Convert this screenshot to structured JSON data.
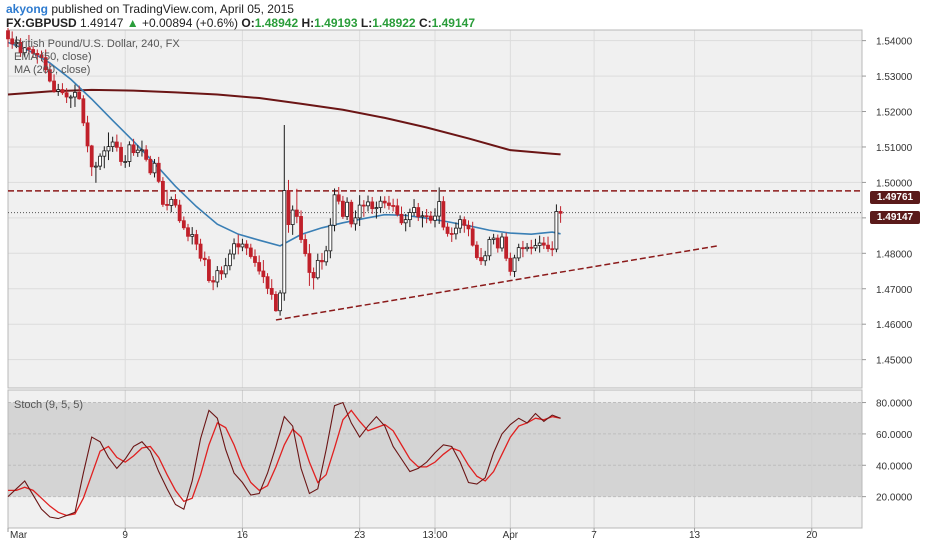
{
  "header": {
    "author": "akyong",
    "published_text": "published on TradingView.com, April 05, 2015",
    "symbol": "FX:GBPUSD",
    "last": "1.49147",
    "change": "+0.00894 (+0.6%)",
    "o_label": "O:",
    "o": "1.48942",
    "h_label": "H:",
    "h": "1.49193",
    "l_label": "L:",
    "l": "1.48922",
    "c_label": "C:",
    "c": "1.49147"
  },
  "legend": {
    "title": "British Pound/U.S. Dollar, 240, FX",
    "ema": "EMA (50, close)",
    "ma": "MA (200, close)",
    "stoch": "Stoch (9, 5, 5)"
  },
  "price_tags": {
    "resistance": "1.49761",
    "current": "1.49147"
  },
  "colors": {
    "bull": "#1a1a1a",
    "bear": "#c0202a",
    "ema": "#3a7fb5",
    "ma": "#6b1515",
    "resistance": "#8b1a1a",
    "stoch_k": "#6b1515",
    "stoch_d": "#e02020",
    "stoch_band": "#d4d4d4",
    "background": "#f0f0f0"
  },
  "chart_data": {
    "type": "candlestick",
    "y_axis": {
      "ylim": [
        1.442,
        1.543
      ],
      "ticks": [
        "1.54000",
        "1.53000",
        "1.52000",
        "1.51000",
        "1.50000",
        "1.49000",
        "1.48000",
        "1.47000",
        "1.46000",
        "1.45000"
      ],
      "tick_values": [
        1.54,
        1.53,
        1.52,
        1.51,
        1.5,
        1.49,
        1.48,
        1.47,
        1.46,
        1.45
      ]
    },
    "x_axis": {
      "labels": [
        "Mar",
        "9",
        "16",
        "23",
        "13:00",
        "Apr",
        "7",
        "13",
        "20"
      ],
      "label_days": [
        2,
        9,
        16,
        23,
        27.5,
        32,
        37,
        43,
        50
      ],
      "xlim": [
        2,
        53
      ]
    },
    "resistance_level": 1.49761,
    "current_price": 1.49147,
    "trendline": {
      "x": [
        18.0,
        44.5
      ],
      "y": [
        1.4612,
        1.4822
      ]
    },
    "candles": [
      [
        2.0,
        1.5428,
        1.5436,
        1.5382,
        1.5405
      ],
      [
        2.25,
        1.5405,
        1.5426,
        1.5377,
        1.5391
      ],
      [
        2.5,
        1.5391,
        1.5412,
        1.5379,
        1.5395
      ],
      [
        2.75,
        1.5395,
        1.5407,
        1.5354,
        1.5366
      ],
      [
        3.0,
        1.5366,
        1.5382,
        1.5354,
        1.538
      ],
      [
        3.25,
        1.538,
        1.5416,
        1.5363,
        1.5375
      ],
      [
        3.5,
        1.5375,
        1.5384,
        1.5353,
        1.5364
      ],
      [
        3.75,
        1.5364,
        1.5375,
        1.5335,
        1.536
      ],
      [
        4.0,
        1.536,
        1.5372,
        1.5342,
        1.5352
      ],
      [
        4.25,
        1.5352,
        1.5375,
        1.5307,
        1.5318
      ],
      [
        4.5,
        1.5318,
        1.5335,
        1.5282,
        1.5286
      ],
      [
        4.75,
        1.5286,
        1.5305,
        1.5253,
        1.5257
      ],
      [
        5.0,
        1.5257,
        1.5278,
        1.5244,
        1.5262
      ],
      [
        5.25,
        1.5262,
        1.528,
        1.5247,
        1.5253
      ],
      [
        5.5,
        1.5253,
        1.5266,
        1.5224,
        1.5241
      ],
      [
        5.75,
        1.5241,
        1.5247,
        1.521,
        1.5241
      ],
      [
        6.0,
        1.5241,
        1.5276,
        1.5213,
        1.5254
      ],
      [
        6.25,
        1.5254,
        1.5273,
        1.5233,
        1.5236
      ],
      [
        6.5,
        1.5236,
        1.5246,
        1.5159,
        1.5168
      ],
      [
        6.75,
        1.5168,
        1.5188,
        1.5085,
        1.5103
      ],
      [
        7.0,
        1.5103,
        1.5106,
        1.5018,
        1.5044
      ],
      [
        7.25,
        1.5044,
        1.5058,
        1.4999,
        1.5046
      ],
      [
        7.5,
        1.5046,
        1.5082,
        1.5035,
        1.5074
      ],
      [
        7.75,
        1.5074,
        1.5102,
        1.504,
        1.5089
      ],
      [
        8.0,
        1.5089,
        1.5141,
        1.5063,
        1.5101
      ],
      [
        8.25,
        1.5101,
        1.5129,
        1.5086,
        1.5114
      ],
      [
        8.5,
        1.5114,
        1.5135,
        1.5087,
        1.5099
      ],
      [
        8.75,
        1.5099,
        1.5113,
        1.5047,
        1.5059
      ],
      [
        9.0,
        1.5059,
        1.5077,
        1.5041,
        1.5059
      ],
      [
        9.25,
        1.5059,
        1.5116,
        1.5044,
        1.5106
      ],
      [
        9.5,
        1.5106,
        1.5123,
        1.5075,
        1.5084
      ],
      [
        9.75,
        1.5084,
        1.5105,
        1.5072,
        1.5091
      ],
      [
        10.0,
        1.5091,
        1.5118,
        1.5073,
        1.5092
      ],
      [
        10.25,
        1.5092,
        1.5105,
        1.5059,
        1.5065
      ],
      [
        10.5,
        1.5065,
        1.5075,
        1.5021,
        1.5027
      ],
      [
        10.75,
        1.5027,
        1.5066,
        1.5014,
        1.5054
      ],
      [
        11.0,
        1.5054,
        1.5072,
        1.4998,
        1.5003
      ],
      [
        11.25,
        1.5003,
        1.5015,
        1.4931,
        1.4938
      ],
      [
        11.5,
        1.4938,
        1.4979,
        1.4921,
        1.4935
      ],
      [
        11.75,
        1.4935,
        1.496,
        1.4916,
        1.4952
      ],
      [
        12.0,
        1.4952,
        1.4967,
        1.4929,
        1.4936
      ],
      [
        12.25,
        1.4936,
        1.4951,
        1.4886,
        1.4892
      ],
      [
        12.5,
        1.4892,
        1.4904,
        1.4866,
        1.4872
      ],
      [
        12.75,
        1.4872,
        1.4883,
        1.4834,
        1.4848
      ],
      [
        13.0,
        1.4848,
        1.4874,
        1.4825,
        1.4853
      ],
      [
        13.25,
        1.4853,
        1.4866,
        1.4809,
        1.4826
      ],
      [
        13.5,
        1.4826,
        1.4841,
        1.4777,
        1.4786
      ],
      [
        13.75,
        1.4786,
        1.4805,
        1.4764,
        1.4782
      ],
      [
        14.0,
        1.4782,
        1.4792,
        1.4717,
        1.4723
      ],
      [
        14.25,
        1.4723,
        1.4736,
        1.4696,
        1.4719
      ],
      [
        14.5,
        1.4719,
        1.4764,
        1.4704,
        1.4751
      ],
      [
        14.75,
        1.4751,
        1.4763,
        1.4725,
        1.4742
      ],
      [
        15.0,
        1.4742,
        1.4787,
        1.4731,
        1.4765
      ],
      [
        15.25,
        1.4765,
        1.4811,
        1.4752,
        1.4798
      ],
      [
        15.5,
        1.4798,
        1.4842,
        1.4783,
        1.4827
      ],
      [
        15.75,
        1.4827,
        1.4853,
        1.4797,
        1.4818
      ],
      [
        16.0,
        1.4818,
        1.4841,
        1.4806,
        1.4826
      ],
      [
        16.25,
        1.4826,
        1.4837,
        1.4795,
        1.4815
      ],
      [
        16.5,
        1.4815,
        1.4827,
        1.4785,
        1.4791
      ],
      [
        16.75,
        1.4791,
        1.4811,
        1.4762,
        1.4774
      ],
      [
        17.0,
        1.4774,
        1.4794,
        1.474,
        1.475
      ],
      [
        17.25,
        1.475,
        1.4781,
        1.4716,
        1.4734
      ],
      [
        17.5,
        1.4734,
        1.4744,
        1.4685,
        1.4701
      ],
      [
        17.75,
        1.4701,
        1.4727,
        1.4669,
        1.4684
      ],
      [
        18.0,
        1.4684,
        1.4693,
        1.4635,
        1.4638
      ],
      [
        18.25,
        1.4638,
        1.4696,
        1.4624,
        1.4688
      ],
      [
        18.5,
        1.4688,
        1.5162,
        1.4666,
        1.4977
      ],
      [
        18.75,
        1.4977,
        1.5007,
        1.4858,
        1.4881
      ],
      [
        19.0,
        1.4881,
        1.4935,
        1.4852,
        1.4922
      ],
      [
        19.25,
        1.4922,
        1.4982,
        1.4885,
        1.4904
      ],
      [
        19.5,
        1.4904,
        1.4921,
        1.4829,
        1.4839
      ],
      [
        19.75,
        1.4839,
        1.4854,
        1.4791,
        1.4799
      ],
      [
        20.0,
        1.4799,
        1.4826,
        1.4708,
        1.4746
      ],
      [
        20.25,
        1.4746,
        1.476,
        1.4698,
        1.4731
      ],
      [
        20.5,
        1.4731,
        1.4799,
        1.4726,
        1.478
      ],
      [
        20.75,
        1.478,
        1.4801,
        1.4754,
        1.4776
      ],
      [
        21.0,
        1.4776,
        1.4821,
        1.4765,
        1.4807
      ],
      [
        21.25,
        1.4807,
        1.4899,
        1.4786,
        1.4879
      ],
      [
        21.5,
        1.4879,
        1.4983,
        1.4862,
        1.4965
      ],
      [
        21.75,
        1.4965,
        1.4987,
        1.4938,
        1.4947
      ],
      [
        22.0,
        1.4947,
        1.4962,
        1.4897,
        1.4904
      ],
      [
        22.25,
        1.4904,
        1.4958,
        1.4894,
        1.4944
      ],
      [
        22.5,
        1.4944,
        1.4951,
        1.4873,
        1.4883
      ],
      [
        22.75,
        1.4883,
        1.4921,
        1.4864,
        1.49
      ],
      [
        23.0,
        1.49,
        1.4964,
        1.4877,
        1.4936
      ],
      [
        23.25,
        1.4936,
        1.495,
        1.4903,
        1.4934
      ],
      [
        23.5,
        1.4934,
        1.4963,
        1.4918,
        1.4945
      ],
      [
        23.75,
        1.4945,
        1.4959,
        1.4911,
        1.4926
      ],
      [
        24.0,
        1.4926,
        1.4946,
        1.4898,
        1.4929
      ],
      [
        24.25,
        1.4929,
        1.4961,
        1.4915,
        1.4947
      ],
      [
        24.5,
        1.4947,
        1.4961,
        1.4927,
        1.4942
      ],
      [
        24.75,
        1.4942,
        1.4962,
        1.4923,
        1.4935
      ],
      [
        25.0,
        1.4935,
        1.4954,
        1.4918,
        1.4934
      ],
      [
        25.25,
        1.4934,
        1.4954,
        1.4904,
        1.491
      ],
      [
        25.5,
        1.491,
        1.4932,
        1.488,
        1.4886
      ],
      [
        25.75,
        1.4886,
        1.4911,
        1.4862,
        1.4895
      ],
      [
        26.0,
        1.4895,
        1.4926,
        1.4874,
        1.4915
      ],
      [
        26.25,
        1.4915,
        1.4953,
        1.4905,
        1.4929
      ],
      [
        26.5,
        1.4929,
        1.4942,
        1.4891,
        1.4903
      ],
      [
        26.75,
        1.4903,
        1.4919,
        1.4873,
        1.4906
      ],
      [
        27.0,
        1.4906,
        1.4925,
        1.4885,
        1.4905
      ],
      [
        27.25,
        1.4905,
        1.4919,
        1.4884,
        1.4893
      ],
      [
        27.5,
        1.4893,
        1.4927,
        1.4873,
        1.4905
      ],
      [
        27.75,
        1.4905,
        1.4986,
        1.4883,
        1.4946
      ],
      [
        28.0,
        1.4946,
        1.4961,
        1.4865,
        1.4874
      ],
      [
        28.25,
        1.4874,
        1.4886,
        1.4847,
        1.4856
      ],
      [
        28.5,
        1.4856,
        1.4873,
        1.4832,
        1.4855
      ],
      [
        28.75,
        1.4855,
        1.4887,
        1.4839,
        1.4871
      ],
      [
        29.0,
        1.4871,
        1.4907,
        1.4857,
        1.4895
      ],
      [
        29.25,
        1.4895,
        1.4904,
        1.4858,
        1.4879
      ],
      [
        29.5,
        1.4879,
        1.4893,
        1.4848,
        1.4869
      ],
      [
        29.75,
        1.4869,
        1.4889,
        1.4819,
        1.4823
      ],
      [
        30.0,
        1.4823,
        1.4834,
        1.4782,
        1.4788
      ],
      [
        30.25,
        1.4788,
        1.4815,
        1.4767,
        1.4779
      ],
      [
        30.5,
        1.4779,
        1.4807,
        1.4765,
        1.4793
      ],
      [
        30.75,
        1.4793,
        1.4847,
        1.478,
        1.4839
      ],
      [
        31.0,
        1.4839,
        1.4855,
        1.4825,
        1.4843
      ],
      [
        31.25,
        1.4843,
        1.4853,
        1.4802,
        1.4815
      ],
      [
        31.5,
        1.4815,
        1.4857,
        1.4805,
        1.4846
      ],
      [
        31.75,
        1.4846,
        1.4858,
        1.4778,
        1.4786
      ],
      [
        32.0,
        1.4786,
        1.4802,
        1.4737,
        1.4749
      ],
      [
        32.25,
        1.4749,
        1.4796,
        1.4733,
        1.4787
      ],
      [
        32.5,
        1.4787,
        1.4827,
        1.4778,
        1.4816
      ],
      [
        32.75,
        1.4816,
        1.4835,
        1.4789,
        1.4813
      ],
      [
        33.0,
        1.4813,
        1.4829,
        1.4805,
        1.4817
      ],
      [
        33.25,
        1.4817,
        1.4838,
        1.4797,
        1.4815
      ],
      [
        33.5,
        1.4815,
        1.4841,
        1.4806,
        1.4822
      ],
      [
        33.75,
        1.4822,
        1.485,
        1.4802,
        1.4829
      ],
      [
        34.0,
        1.4829,
        1.4846,
        1.4812,
        1.4823
      ],
      [
        34.25,
        1.4823,
        1.4847,
        1.4804,
        1.4813
      ],
      [
        34.5,
        1.4813,
        1.4834,
        1.4792,
        1.4812
      ],
      [
        34.75,
        1.4812,
        1.4938,
        1.4803,
        1.4918
      ],
      [
        35.0,
        1.4918,
        1.4933,
        1.4886,
        1.4913
      ]
    ],
    "ema": {
      "x": [
        2.0,
        3.25,
        4.5,
        5.75,
        7.0,
        8.25,
        9.5,
        10.75,
        12.0,
        13.25,
        14.5,
        15.75,
        17.0,
        18.25,
        19.5,
        20.75,
        22.0,
        23.25,
        24.5,
        25.75,
        27.0,
        28.25,
        29.5,
        30.75,
        32.0,
        33.25,
        34.5,
        35.0
      ],
      "y": [
        1.5395,
        1.5372,
        1.5337,
        1.5291,
        1.5235,
        1.5175,
        1.5116,
        1.5054,
        1.4989,
        1.4932,
        1.4882,
        1.4854,
        1.4837,
        1.4821,
        1.4853,
        1.4872,
        1.4886,
        1.4898,
        1.4909,
        1.4907,
        1.4899,
        1.4889,
        1.4878,
        1.4865,
        1.4857,
        1.4854,
        1.486,
        1.4855
      ]
    },
    "ma": {
      "x": [
        2.0,
        4.5,
        7.0,
        9.5,
        12.0,
        14.5,
        17.0,
        19.5,
        22.0,
        24.5,
        27.0,
        29.5,
        32.0,
        34.5,
        35.0
      ],
      "y": [
        1.5248,
        1.5257,
        1.5261,
        1.5259,
        1.5254,
        1.5248,
        1.5238,
        1.5222,
        1.5205,
        1.5182,
        1.5155,
        1.5124,
        1.5091,
        1.5081,
        1.5079
      ]
    },
    "stoch": {
      "ylim": [
        0,
        88
      ],
      "ticks": [
        "80.0000",
        "60.0000",
        "40.0000",
        "20.0000"
      ],
      "tick_values": [
        80,
        60,
        40,
        20
      ],
      "band": [
        20,
        80
      ],
      "x": [
        2.0,
        2.5,
        3.0,
        3.5,
        4.0,
        4.5,
        5.0,
        5.5,
        6.0,
        6.5,
        7.0,
        7.5,
        8.0,
        8.5,
        9.0,
        9.5,
        10.0,
        10.5,
        11.0,
        11.5,
        12.0,
        12.5,
        13.0,
        13.5,
        14.0,
        14.5,
        15.0,
        15.5,
        16.0,
        16.5,
        17.0,
        17.5,
        18.0,
        18.5,
        19.0,
        19.5,
        20.0,
        20.5,
        21.0,
        21.5,
        22.0,
        22.5,
        23.0,
        23.5,
        24.0,
        24.5,
        25.0,
        25.5,
        26.0,
        26.5,
        27.0,
        27.5,
        28.0,
        28.5,
        29.0,
        29.5,
        30.0,
        30.5,
        31.0,
        31.5,
        32.0,
        32.5,
        33.0,
        33.5,
        34.0,
        34.5,
        35.0
      ],
      "k": [
        20,
        25,
        30,
        21,
        12,
        7,
        6,
        8,
        10,
        35,
        58,
        55,
        45,
        38,
        44,
        52,
        55,
        49,
        36,
        25,
        15,
        12,
        30,
        57,
        75,
        70,
        50,
        35,
        29,
        21,
        22,
        35,
        52,
        71,
        65,
        38,
        22,
        25,
        50,
        78,
        80,
        67,
        58,
        65,
        71,
        65,
        52,
        44,
        36,
        38,
        42,
        48,
        53,
        52,
        42,
        29,
        28,
        32,
        48,
        60,
        66,
        70,
        67,
        73,
        68,
        72,
        70
      ],
      "d": [
        24,
        24,
        26,
        24,
        19,
        14,
        10,
        8,
        9,
        19,
        34,
        49,
        52,
        45,
        42,
        46,
        51,
        52,
        45,
        34,
        24,
        17,
        19,
        34,
        53,
        67,
        64,
        53,
        39,
        29,
        24,
        27,
        39,
        53,
        63,
        58,
        42,
        29,
        34,
        51,
        69,
        75,
        68,
        62,
        64,
        66,
        62,
        53,
        44,
        39,
        39,
        42,
        47,
        51,
        49,
        40,
        33,
        30,
        36,
        47,
        58,
        65,
        67,
        70,
        69,
        71,
        70
      ]
    }
  }
}
